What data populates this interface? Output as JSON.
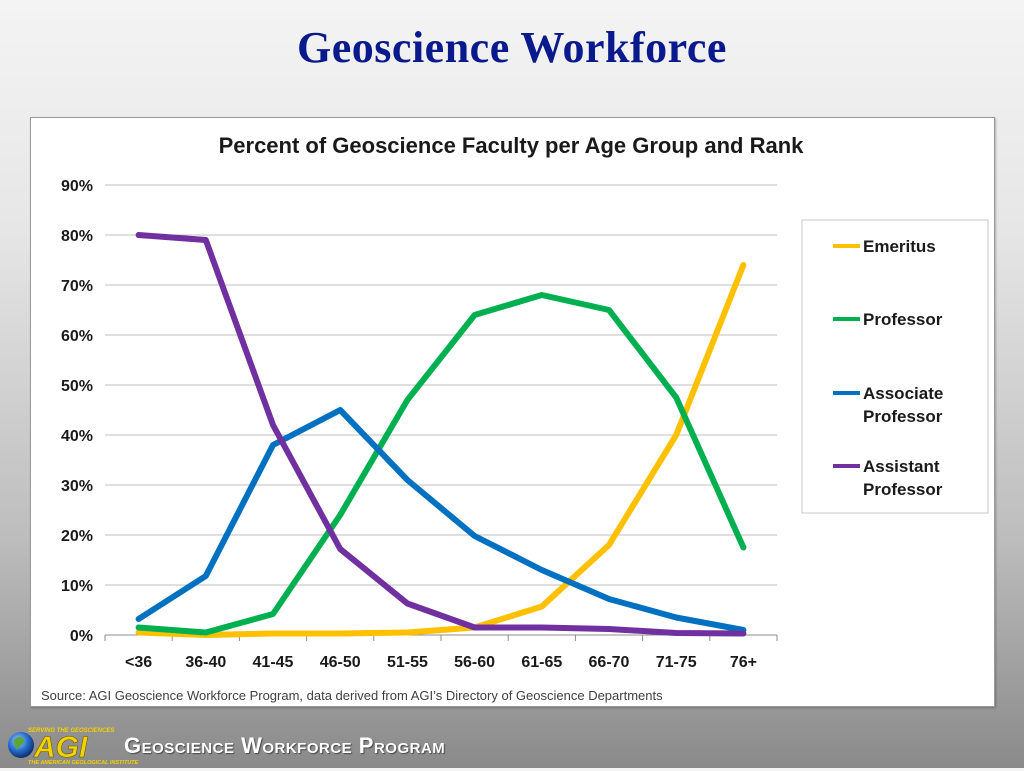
{
  "slide": {
    "title": "Geoscience Workforce",
    "footer_program": "Geoscience Workforce Program",
    "logo": {
      "tagline": "SERVING THE GEOSCIENCES",
      "mark": "AGI",
      "subtitle": "THE AMERICAN GEOLOGICAL INSTITUTE"
    }
  },
  "chart_data": {
    "type": "line",
    "title": "Percent of Geoscience Faculty per Age Group and Rank",
    "source": "Source: AGI Geoscience Workforce Program, data derived  from AGI’s Directory of Geoscience Departments",
    "categories": [
      "<36",
      "36-40",
      "41-45",
      "46-50",
      "51-55",
      "56-60",
      "61-65",
      "66-70",
      "71-75",
      "76+"
    ],
    "ylim": [
      0,
      90
    ],
    "yticks": [
      0,
      10,
      20,
      30,
      40,
      50,
      60,
      70,
      80,
      90
    ],
    "ytick_labels": [
      "0%",
      "10%",
      "20%",
      "30%",
      "40%",
      "50%",
      "60%",
      "70%",
      "80%",
      "90%"
    ],
    "grid": true,
    "legend_position": "right",
    "series": [
      {
        "name": "Emeritus",
        "color": "#FFC000",
        "values": [
          0.5,
          0,
          0.3,
          0.3,
          0.5,
          1.5,
          5.7,
          18,
          40,
          74
        ]
      },
      {
        "name": "Professor",
        "color": "#00B050",
        "values": [
          1.5,
          0.5,
          4.2,
          24,
          47,
          64,
          68,
          65,
          47.5,
          17.5
        ]
      },
      {
        "name": "Associate Professor",
        "legend_lines": [
          "Associate",
          "Professor"
        ],
        "color": "#0070C0",
        "values": [
          3.2,
          11.8,
          38,
          45,
          31,
          19.8,
          13,
          7.2,
          3.5,
          1
        ]
      },
      {
        "name": "Assistant Professor",
        "legend_lines": [
          "Assistant",
          "Professor"
        ],
        "color": "#7030A0",
        "values": [
          80,
          79,
          42,
          17.2,
          6.3,
          1.5,
          1.5,
          1.2,
          0.4,
          0.3
        ]
      }
    ]
  }
}
